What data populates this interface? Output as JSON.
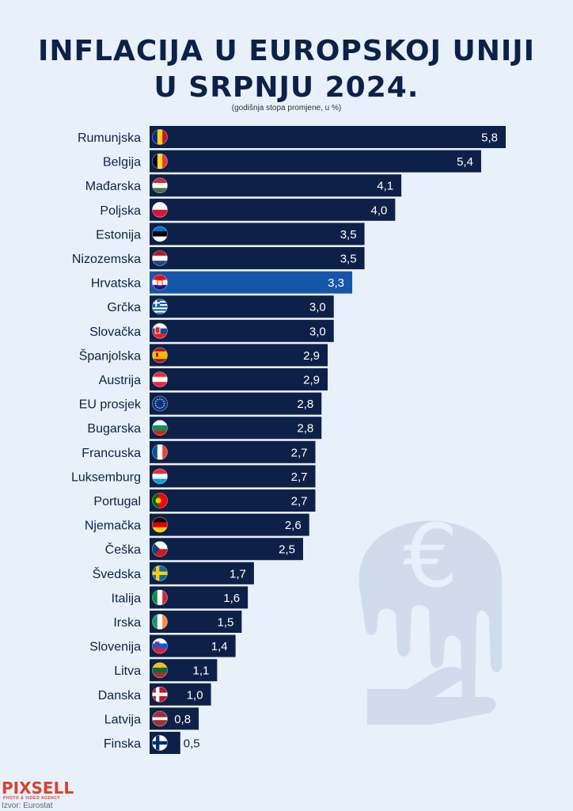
{
  "title": [
    "INFLACIJA U EUROPSKOJ UNIJI",
    "U SRPNJU 2024."
  ],
  "subtitle": "(godišnja stopa promjene, u %)",
  "colors": {
    "bar": "#0d2148",
    "highlight": "#1656a8",
    "label": "#0d2148",
    "value_text": "#ffffff",
    "background": "#e8f0fa"
  },
  "logo": {
    "text": "PIXSELL",
    "tagline": "PHOTO & VIDEO AGENCY"
  },
  "source": "Izvor: Eurostat",
  "chart_data": {
    "type": "bar",
    "orientation": "horizontal",
    "categories": [
      "Rumunjska",
      "Belgija",
      "Mađarska",
      "Poljska",
      "Estonija",
      "Nizozemska",
      "Hrvatska",
      "Grčka",
      "Slovačka",
      "Španjolska",
      "Austrija",
      "EU prosjek",
      "Bugarska",
      "Francuska",
      "Luksemburg",
      "Portugal",
      "Njemačka",
      "Češka",
      "Švedska",
      "Italija",
      "Irska",
      "Slovenija",
      "Litva",
      "Danska",
      "Latvija",
      "Finska"
    ],
    "values": [
      5.8,
      5.4,
      4.1,
      4.0,
      3.5,
      3.5,
      3.3,
      3.0,
      3.0,
      2.9,
      2.9,
      2.8,
      2.8,
      2.7,
      2.7,
      2.7,
      2.6,
      2.5,
      1.7,
      1.6,
      1.5,
      1.4,
      1.1,
      1.0,
      0.8,
      0.5
    ],
    "value_labels": [
      "5,8",
      "5,4",
      "4,1",
      "4,0",
      "3,5",
      "3,5",
      "3,3",
      "3,0",
      "3,0",
      "2,9",
      "2,9",
      "2,8",
      "2,8",
      "2,7",
      "2,7",
      "2,7",
      "2,6",
      "2,5",
      "1,7",
      "1,6",
      "1,5",
      "1,4",
      "1,1",
      "1,0",
      "0,8",
      "0,5"
    ],
    "highlight": "Hrvatska",
    "flags": [
      "romania-flag-icon",
      "belgium-flag-icon",
      "hungary-flag-icon",
      "poland-flag-icon",
      "estonia-flag-icon",
      "netherlands-flag-icon",
      "croatia-flag-icon",
      "greece-flag-icon",
      "slovakia-flag-icon",
      "spain-flag-icon",
      "austria-flag-icon",
      "eu-flag-icon",
      "bulgaria-flag-icon",
      "france-flag-icon",
      "luxembourg-flag-icon",
      "portugal-flag-icon",
      "germany-flag-icon",
      "czechia-flag-icon",
      "sweden-flag-icon",
      "italy-flag-icon",
      "ireland-flag-icon",
      "slovenia-flag-icon",
      "lithuania-flag-icon",
      "denmark-flag-icon",
      "latvia-flag-icon",
      "finland-flag-icon"
    ],
    "xlim": [
      0,
      5.8
    ],
    "grid": false,
    "legend": "none"
  }
}
